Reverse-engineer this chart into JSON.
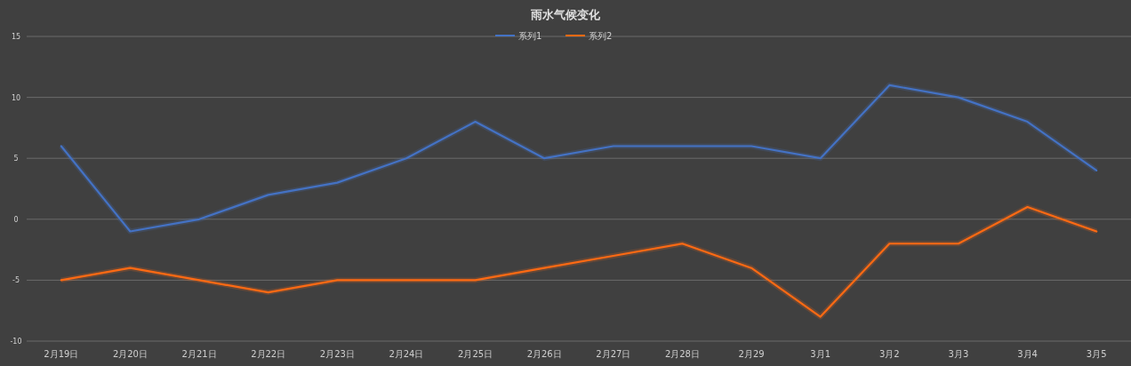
{
  "chart_data": {
    "type": "line",
    "title": "雨水气候变化",
    "categories": [
      "2月19日",
      "2月20日",
      "2月21日",
      "2月22日",
      "2月23日",
      "2月24日",
      "2月25日",
      "2月26日",
      "2月27日",
      "2月28日",
      "2月29",
      "3月1",
      "3月2",
      "3月3",
      "3月4",
      "3月5"
    ],
    "series": [
      {
        "name": "系列1",
        "color": "#4472c4",
        "values": [
          6,
          -1,
          0,
          2,
          3,
          5,
          8,
          5,
          6,
          6,
          6,
          5,
          11,
          10,
          8,
          4
        ]
      },
      {
        "name": "系列2",
        "color": "#ff6a13",
        "values": [
          -5,
          -4,
          -5,
          -6,
          -5,
          -5,
          -5,
          -4,
          -3,
          -2,
          -4,
          -8,
          -2,
          -2,
          1,
          -1
        ]
      }
    ],
    "ylim": [
      -10,
      15
    ],
    "yticks": [
      -10,
      -5,
      0,
      5,
      10,
      15
    ],
    "grid": "y",
    "legend": "top"
  }
}
